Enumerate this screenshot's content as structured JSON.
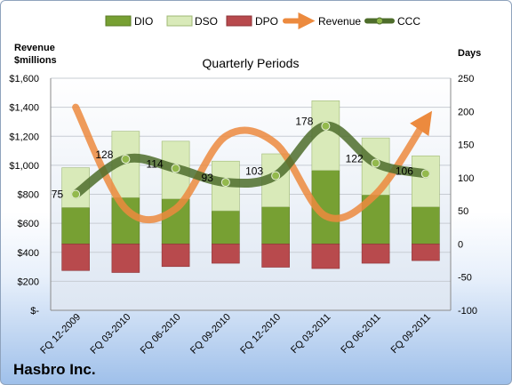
{
  "chart_data": {
    "type": "bar",
    "title": "Quarterly Periods",
    "company": "Hasbro Inc.",
    "left_axis_title": [
      "Revenue",
      "$millions"
    ],
    "right_axis_title": "Days",
    "categories": [
      "FQ 12-2009",
      "FQ 03-2010",
      "FQ 06-2010",
      "FQ 09-2010",
      "FQ 12-2010",
      "FQ 03-2011",
      "FQ 06-2011",
      "FQ 09-2011"
    ],
    "left_axis": {
      "min": 0,
      "max": 1600,
      "step": 200,
      "tick_labels": [
        "$-",
        "$200",
        "$400",
        "$600",
        "$800",
        "$1,000",
        "$1,200",
        "$1,400",
        "$1,600"
      ]
    },
    "right_axis": {
      "min": -100,
      "max": 250,
      "step": 50,
      "tick_labels": [
        "-100",
        "-50",
        "0",
        "50",
        "100",
        "150",
        "200",
        "250"
      ]
    },
    "grid": true,
    "legend_position": "top",
    "series": [
      {
        "name": "DIO",
        "axis": "right",
        "chart": "stacked-bar",
        "color": "#77a033",
        "values": [
          55,
          70,
          68,
          50,
          56,
          111,
          74,
          56
        ]
      },
      {
        "name": "DSO",
        "axis": "right",
        "chart": "stacked-bar",
        "color": "#d9eab9",
        "values": [
          60,
          100,
          87,
          75,
          80,
          105,
          86,
          77
        ]
      },
      {
        "name": "DPO",
        "axis": "right",
        "chart": "stacked-bar-negative",
        "color": "#b84a4d",
        "values": [
          -40,
          -43,
          -34,
          -29,
          -35,
          -37,
          -29,
          -25
        ]
      },
      {
        "name": "Revenue",
        "axis": "left",
        "chart": "smooth-line-arrow",
        "color": "#ec8a3e",
        "values": [
          1400,
          700,
          700,
          1200,
          1150,
          650,
          800,
          1310
        ]
      },
      {
        "name": "CCC",
        "axis": "right",
        "chart": "smooth-line-markers",
        "color": "#4e6d2b",
        "values": [
          75,
          128,
          114,
          93,
          103,
          178,
          122,
          106
        ]
      }
    ],
    "data_labels": [
      "75",
      "128",
      "114",
      "93",
      "103",
      "178",
      "122",
      "106"
    ]
  }
}
